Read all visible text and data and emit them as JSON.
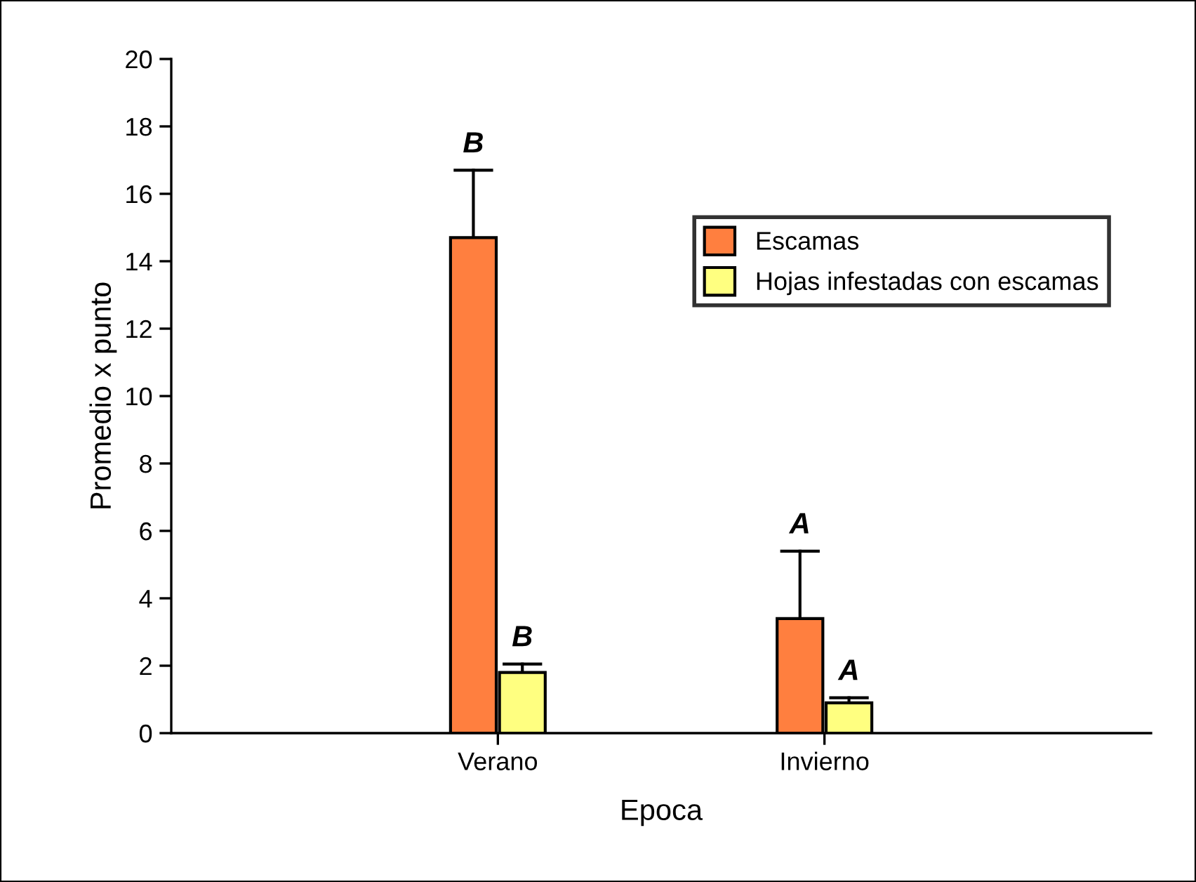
{
  "chart_data": {
    "type": "bar",
    "xlabel": "Epoca",
    "ylabel": "Promedio x punto",
    "categories": [
      "Verano",
      "Invierno"
    ],
    "series": [
      {
        "name": "Escamas",
        "color": "#ff7f3f",
        "values": [
          14.7,
          3.4
        ],
        "errors": [
          2.0,
          2.0
        ],
        "value_labels": [
          "B",
          "A"
        ]
      },
      {
        "name": "Hojas infestadas con escamas",
        "color": "#ffff80",
        "values": [
          1.8,
          0.9
        ],
        "errors": [
          0.25,
          0.15
        ],
        "value_labels": [
          "B",
          "A"
        ]
      }
    ],
    "ylim": [
      0,
      20
    ],
    "yticks": [
      0,
      2,
      4,
      6,
      8,
      10,
      12,
      14,
      16,
      18,
      20
    ],
    "grid": false,
    "legend": "center right"
  }
}
